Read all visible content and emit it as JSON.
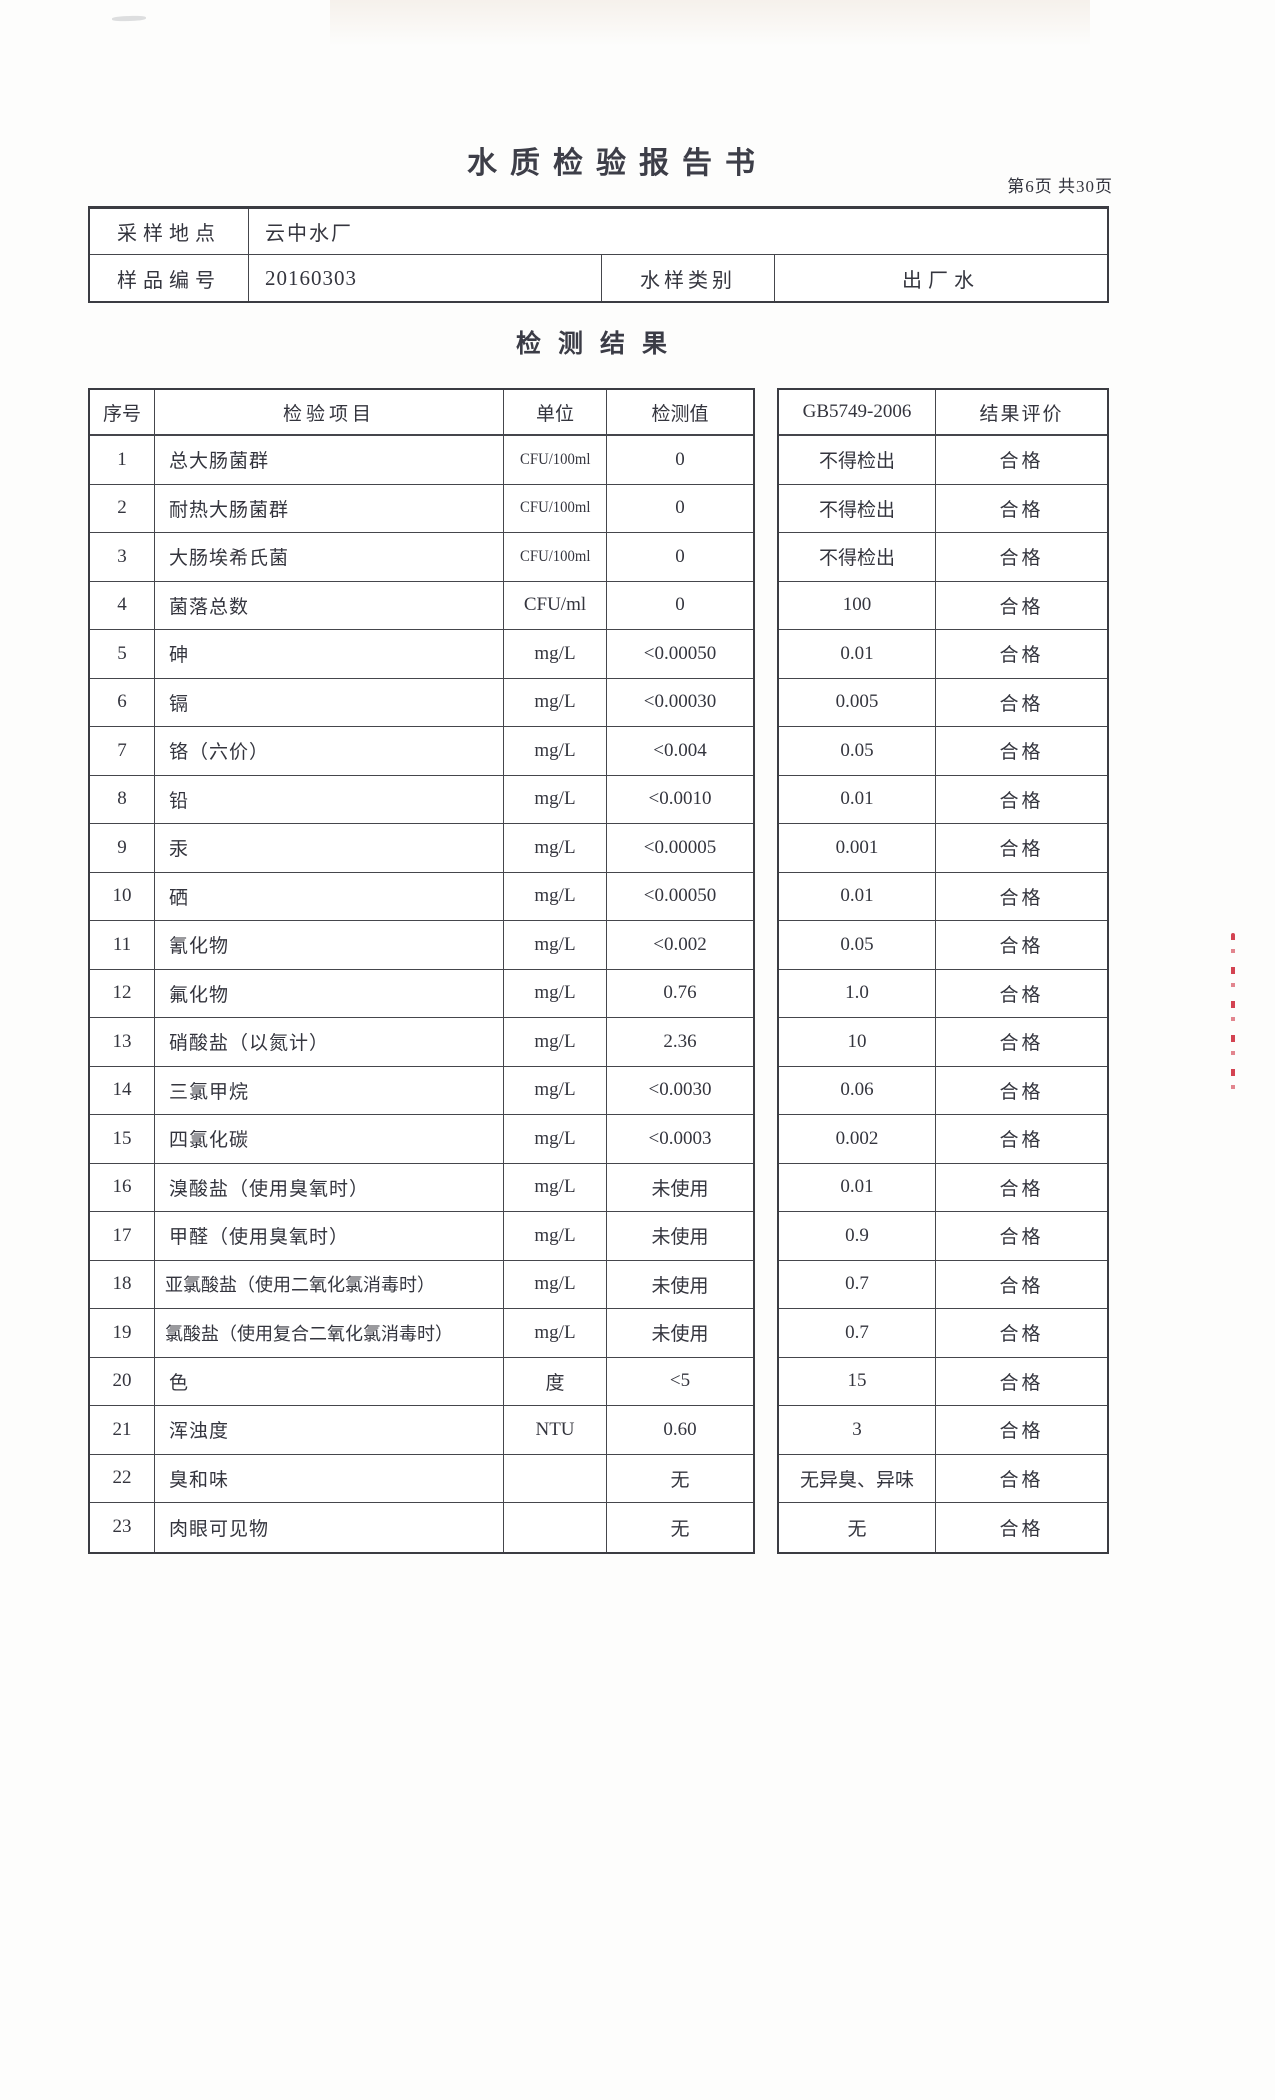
{
  "page": {
    "title": "水质检验报告书",
    "page_info": "第6页 共30页",
    "section_title": "检测结果"
  },
  "sample_info": {
    "location_label": "采样地点",
    "location_value": "云中水厂",
    "sample_no_label": "样品编号",
    "sample_no_value": "20160303",
    "type_label": "水样类别",
    "type_value": "出厂水"
  },
  "results_table": {
    "headers": {
      "no": "序号",
      "item": "检验项目",
      "unit": "单位",
      "value": "检测值",
      "standard": "GB5749-2006",
      "evaluation": "结果评价"
    },
    "rows": [
      {
        "no": "1",
        "item": "总大肠菌群",
        "unit": "CFU/100ml",
        "value": "0",
        "standard": "不得检出",
        "evaluation": "合格"
      },
      {
        "no": "2",
        "item": "耐热大肠菌群",
        "unit": "CFU/100ml",
        "value": "0",
        "standard": "不得检出",
        "evaluation": "合格"
      },
      {
        "no": "3",
        "item": "大肠埃希氏菌",
        "unit": "CFU/100ml",
        "value": "0",
        "standard": "不得检出",
        "evaluation": "合格"
      },
      {
        "no": "4",
        "item": "菌落总数",
        "unit": "CFU/ml",
        "value": "0",
        "standard": "100",
        "evaluation": "合格"
      },
      {
        "no": "5",
        "item": "砷",
        "unit": "mg/L",
        "value": "<0.00050",
        "standard": "0.01",
        "evaluation": "合格"
      },
      {
        "no": "6",
        "item": "镉",
        "unit": "mg/L",
        "value": "<0.00030",
        "standard": "0.005",
        "evaluation": "合格"
      },
      {
        "no": "7",
        "item": "铬（六价）",
        "unit": "mg/L",
        "value": "<0.004",
        "standard": "0.05",
        "evaluation": "合格"
      },
      {
        "no": "8",
        "item": "铅",
        "unit": "mg/L",
        "value": "<0.0010",
        "standard": "0.01",
        "evaluation": "合格"
      },
      {
        "no": "9",
        "item": "汞",
        "unit": "mg/L",
        "value": "<0.00005",
        "standard": "0.001",
        "evaluation": "合格"
      },
      {
        "no": "10",
        "item": "硒",
        "unit": "mg/L",
        "value": "<0.00050",
        "standard": "0.01",
        "evaluation": "合格"
      },
      {
        "no": "11",
        "item": "氰化物",
        "unit": "mg/L",
        "value": "<0.002",
        "standard": "0.05",
        "evaluation": "合格"
      },
      {
        "no": "12",
        "item": "氟化物",
        "unit": "mg/L",
        "value": "0.76",
        "standard": "1.0",
        "evaluation": "合格"
      },
      {
        "no": "13",
        "item": "硝酸盐（以氮计）",
        "unit": "mg/L",
        "value": "2.36",
        "standard": "10",
        "evaluation": "合格"
      },
      {
        "no": "14",
        "item": "三氯甲烷",
        "unit": "mg/L",
        "value": "<0.0030",
        "standard": "0.06",
        "evaluation": "合格"
      },
      {
        "no": "15",
        "item": "四氯化碳",
        "unit": "mg/L",
        "value": "<0.0003",
        "standard": "0.002",
        "evaluation": "合格"
      },
      {
        "no": "16",
        "item": "溴酸盐（使用臭氧时）",
        "unit": "mg/L",
        "value": "未使用",
        "standard": "0.01",
        "evaluation": "合格"
      },
      {
        "no": "17",
        "item": "甲醛（使用臭氧时）",
        "unit": "mg/L",
        "value": "未使用",
        "standard": "0.9",
        "evaluation": "合格"
      },
      {
        "no": "18",
        "item": "亚氯酸盐（使用二氧化氯消毒时）",
        "unit": "mg/L",
        "value": "未使用",
        "standard": "0.7",
        "evaluation": "合格"
      },
      {
        "no": "19",
        "item": "氯酸盐（使用复合二氧化氯消毒时）",
        "unit": "mg/L",
        "value": "未使用",
        "standard": "0.7",
        "evaluation": "合格"
      },
      {
        "no": "20",
        "item": "色",
        "unit": "度",
        "value": "<5",
        "standard": "15",
        "evaluation": "合格"
      },
      {
        "no": "21",
        "item": "浑浊度",
        "unit": "NTU",
        "value": "0.60",
        "standard": "3",
        "evaluation": "合格"
      },
      {
        "no": "22",
        "item": "臭和味",
        "unit": "",
        "value": "无",
        "standard": "无异臭、异味",
        "evaluation": "合格"
      },
      {
        "no": "23",
        "item": "肉眼可见物",
        "unit": "",
        "value": "无",
        "standard": "无",
        "evaluation": "合格"
      }
    ]
  },
  "artifacts": {
    "red_mark_color": "#cc2233"
  }
}
